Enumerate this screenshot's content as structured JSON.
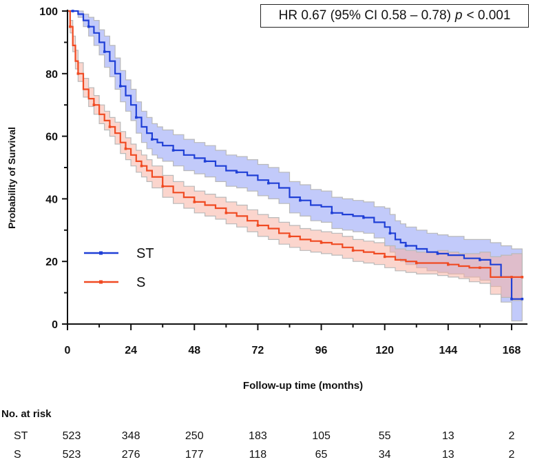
{
  "hr_annotation": {
    "prefix": "HR 0.67 (95% CI 0.58 – 0.78)",
    "p_label": "p",
    "suffix": "< 0.001"
  },
  "risk_table": {
    "title": "No. at risk",
    "rows": [
      {
        "label": "ST",
        "values": [
          "523",
          "348",
          "250",
          "183",
          "105",
          "55",
          "13",
          "2"
        ]
      },
      {
        "label": "S",
        "values": [
          "523",
          "276",
          "177",
          "118",
          "65",
          "34",
          "13",
          "2"
        ]
      }
    ]
  },
  "chart_data": {
    "type": "line",
    "subtype": "kaplan-meier",
    "title": "",
    "xlabel": "Follow-up time (months)",
    "ylabel": "Probability of Survival",
    "xlim": [
      0,
      174
    ],
    "ylim": [
      0,
      100
    ],
    "xticks": [
      0,
      24,
      48,
      72,
      96,
      120,
      144,
      168
    ],
    "yticks": [
      0,
      20,
      40,
      60,
      80,
      100
    ],
    "legend": {
      "position": "bottom-left"
    },
    "series": [
      {
        "name": "ST",
        "color": "#1f3fd6",
        "band_color": "#8f9ff5",
        "x": [
          0,
          2,
          4,
          6,
          8,
          10,
          12,
          14,
          16,
          18,
          20,
          22,
          24,
          26,
          28,
          30,
          32,
          34,
          36,
          40,
          44,
          48,
          52,
          56,
          60,
          64,
          68,
          72,
          76,
          80,
          84,
          88,
          92,
          96,
          100,
          104,
          108,
          112,
          116,
          120,
          122,
          124,
          126,
          128,
          132,
          136,
          140,
          144,
          150,
          156,
          160,
          164,
          168,
          172
        ],
        "y": [
          100,
          100,
          99,
          97,
          95,
          93,
          90,
          87,
          84,
          80,
          76,
          73,
          70,
          66,
          63,
          61,
          59,
          58,
          57,
          55.5,
          54,
          53,
          52,
          50.5,
          49,
          48.5,
          47.5,
          46,
          45,
          43.5,
          40.5,
          39.5,
          38,
          37.5,
          35.5,
          35,
          34.5,
          34,
          32.5,
          31,
          29,
          27,
          26,
          25,
          24,
          23,
          22.5,
          22,
          21,
          20.5,
          19,
          15,
          8,
          8
        ],
        "lower": [
          100,
          100,
          98,
          95,
          92,
          89,
          86,
          82,
          79,
          75,
          71,
          68,
          65,
          61,
          58,
          56,
          54,
          53,
          52,
          50.5,
          49,
          48,
          47,
          45.5,
          44,
          43.5,
          42.5,
          41,
          40,
          38.5,
          35.5,
          34.5,
          33,
          32.5,
          30.5,
          30,
          29.5,
          29,
          27.5,
          25,
          23,
          21,
          20,
          19,
          18,
          17,
          16.5,
          16,
          15,
          14,
          12,
          7,
          1,
          1
        ],
        "upper": [
          100,
          100,
          100,
          99,
          98,
          97,
          94,
          92,
          89,
          85,
          81,
          78,
          75,
          71,
          68,
          66,
          64,
          63,
          62,
          60.5,
          59,
          58,
          57,
          55.5,
          54,
          53.5,
          52.5,
          51,
          50,
          48.5,
          45.5,
          44.5,
          43,
          42.5,
          40.5,
          40,
          39.5,
          39,
          37.5,
          37,
          35,
          33,
          32,
          31,
          30,
          29,
          28.5,
          28,
          27,
          27,
          26,
          25,
          24,
          24
        ]
      },
      {
        "name": "S",
        "color": "#f04a22",
        "band_color": "#f7b3a4",
        "x": [
          0,
          1,
          2,
          3,
          4,
          6,
          8,
          10,
          12,
          14,
          16,
          18,
          20,
          22,
          24,
          26,
          28,
          30,
          32,
          36,
          40,
          44,
          48,
          52,
          56,
          60,
          64,
          68,
          72,
          76,
          80,
          84,
          88,
          92,
          96,
          100,
          104,
          108,
          112,
          116,
          120,
          124,
          128,
          132,
          136,
          140,
          144,
          148,
          152,
          156,
          160,
          164,
          168,
          172
        ],
        "y": [
          100,
          95,
          89,
          84,
          80,
          75,
          72,
          70,
          67,
          65,
          63,
          61,
          58,
          56,
          54,
          52,
          50.5,
          49,
          47,
          44,
          42,
          40.5,
          39,
          38,
          37,
          35.5,
          34.5,
          33,
          31.5,
          30.5,
          29,
          28,
          27,
          26.5,
          26,
          25.5,
          24.5,
          23.5,
          23,
          22.5,
          21.5,
          20.5,
          20,
          19.5,
          19.5,
          19.5,
          19,
          18.5,
          18,
          18,
          15,
          15,
          15,
          15
        ],
        "lower": [
          100,
          93,
          87,
          81.5,
          77.5,
          72.5,
          69.5,
          67,
          64,
          62,
          60,
          57.5,
          54.5,
          52.5,
          50.5,
          48.5,
          47,
          45.5,
          43.5,
          40.5,
          38.5,
          37,
          35.5,
          34.5,
          33.5,
          32,
          31,
          29.5,
          28,
          27,
          25.5,
          24.5,
          23.5,
          23,
          22.5,
          22,
          21,
          20,
          19.5,
          19,
          18,
          17,
          16.5,
          16,
          16,
          15.5,
          15,
          14.5,
          13.5,
          13,
          9.5,
          8.5,
          7.5,
          7.5
        ],
        "upper": [
          100,
          97,
          92,
          87.5,
          83.5,
          78.5,
          75.5,
          73,
          70,
          68,
          66,
          64.5,
          61.5,
          59.5,
          57.5,
          55.5,
          54,
          52.5,
          50.5,
          47.5,
          45.5,
          44,
          42.5,
          41.5,
          40.5,
          39,
          38,
          36.5,
          35,
          34,
          32.5,
          31.5,
          30.5,
          30,
          29.5,
          29,
          28,
          27,
          26.5,
          26,
          25,
          24,
          23.5,
          23,
          23,
          23.5,
          23,
          22.5,
          22.5,
          23,
          21.5,
          22,
          22.5,
          22.5
        ]
      }
    ]
  }
}
